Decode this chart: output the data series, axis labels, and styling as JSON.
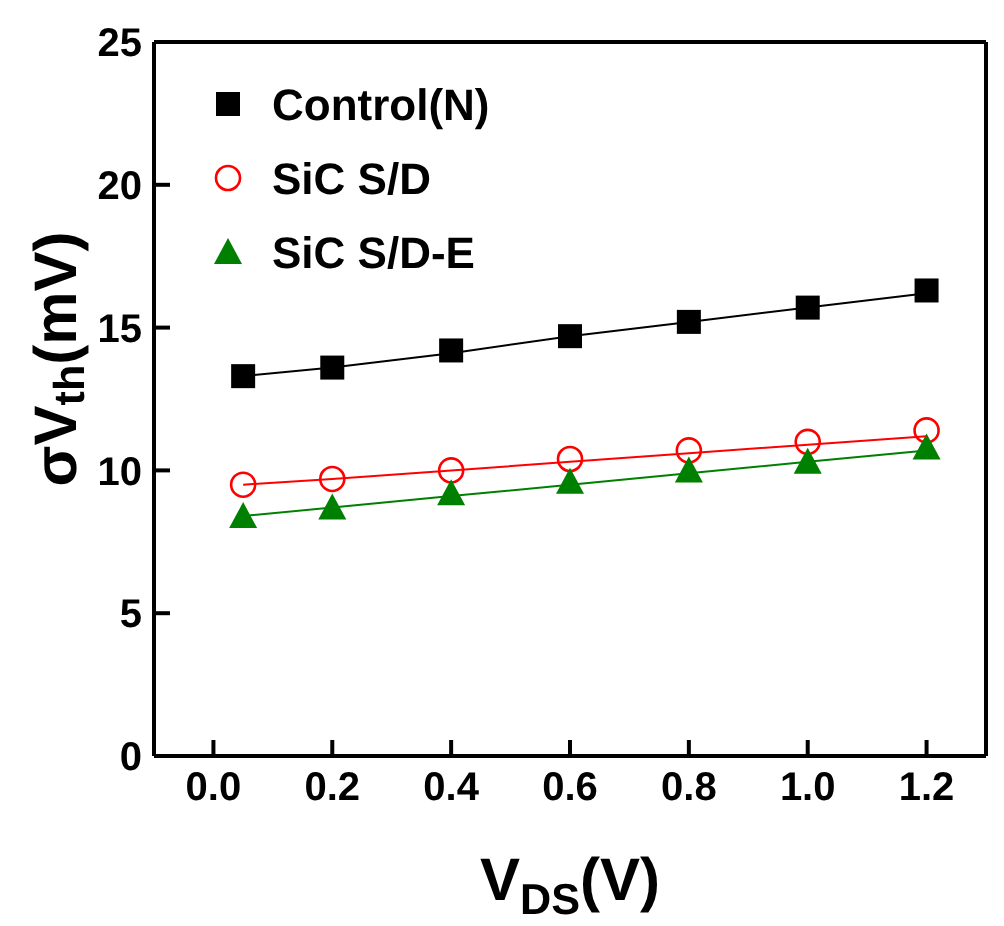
{
  "chart_data": {
    "type": "scatter",
    "xlabel": "V$_{DS}$(V)",
    "ylabel": "σV$_{th}$(mV)",
    "xlim": [
      -0.1,
      1.3
    ],
    "ylim": [
      0,
      25
    ],
    "xticks": [
      {
        "value": 0,
        "label": "0.0"
      },
      {
        "value": 0.2,
        "label": "0.2"
      },
      {
        "value": 0.4,
        "label": "0.4"
      },
      {
        "value": 0.6,
        "label": "0.6"
      },
      {
        "value": 0.8,
        "label": "0.8"
      },
      {
        "value": 1,
        "label": "1.0"
      },
      {
        "value": 1.2,
        "label": "1.2"
      }
    ],
    "yticks": [
      0,
      5,
      10,
      15,
      20,
      25
    ],
    "legend": "top left",
    "x": [
      0.05,
      0.2,
      0.4,
      0.6,
      0.8,
      1.0,
      1.2
    ],
    "series": [
      {
        "name": "Control(N)",
        "color": "#000000",
        "marker": "square",
        "values": [
          13.3,
          13.6,
          14.2,
          14.7,
          15.2,
          15.7,
          16.3
        ]
      },
      {
        "name": "SiC S/D",
        "color": "#ff0000",
        "marker": "circle",
        "values": [
          9.5,
          9.7,
          10.0,
          10.4,
          10.7,
          11.0,
          11.4
        ]
      },
      {
        "name": "SiC S/D-E",
        "color": "#008000",
        "marker": "triangle",
        "values": [
          8.4,
          8.7,
          9.2,
          9.6,
          10.0,
          10.3,
          10.8
        ]
      },
      {
        "type": "line",
        "color": "#000000",
        "values": [
          13.3,
          13.6,
          14.1,
          14.7,
          15.2,
          15.7,
          16.2
        ]
      },
      {
        "type": "line",
        "color": "#ff0000",
        "values": [
          9.5,
          9.7,
          10.0,
          10.3,
          10.6,
          10.9,
          11.2
        ]
      },
      {
        "type": "line",
        "color": "#008000",
        "values": [
          8.4,
          8.7,
          9.1,
          9.5,
          9.9,
          10.3,
          10.7
        ]
      }
    ]
  }
}
